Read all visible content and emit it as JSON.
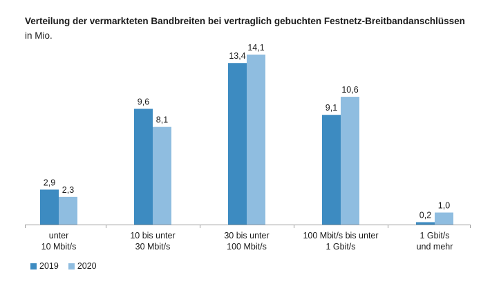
{
  "chart_data": {
    "type": "bar",
    "title": "Verteilung der vermarkteten Bandbreiten bei vertraglich gebuchten Festnetz-Breitbandanschlüssen",
    "subtitle": "in Mio.",
    "xlabel": "",
    "ylabel": "",
    "ylim": [
      0,
      14.1
    ],
    "grid": false,
    "legend_position": "bottom-left",
    "categories": [
      [
        "unter",
        "10 Mbit/s"
      ],
      [
        "10 bis unter",
        "30 Mbit/s"
      ],
      [
        "30 bis unter",
        "100 Mbit/s"
      ],
      [
        "100 Mbit/s bis unter",
        "1 Gbit/s"
      ],
      [
        "1 Gbit/s",
        "und mehr"
      ]
    ],
    "series": [
      {
        "name": "2019",
        "color": "#3d8bc1",
        "values": [
          2.9,
          9.6,
          13.4,
          9.1,
          0.2
        ],
        "labels": [
          "2,9",
          "9,6",
          "13,4",
          "9,1",
          "0,2"
        ]
      },
      {
        "name": "2020",
        "color": "#8fbde0",
        "values": [
          2.3,
          8.1,
          14.1,
          10.6,
          1.0
        ],
        "labels": [
          "2,3",
          "8,1",
          "14,1",
          "10,6",
          "1,0"
        ]
      }
    ]
  }
}
